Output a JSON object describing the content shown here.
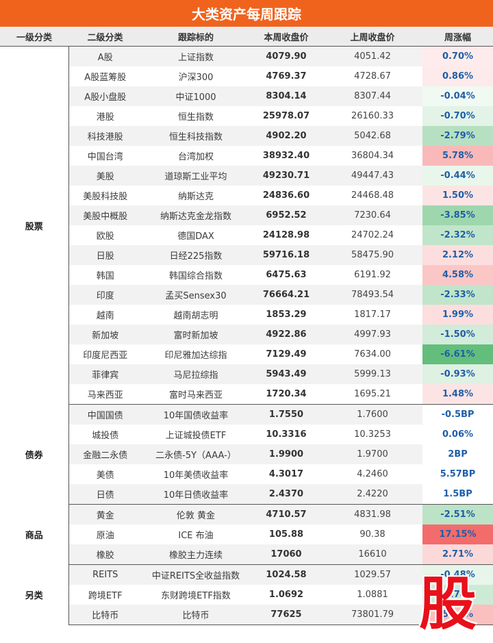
{
  "title": "大类资产每周跟踪",
  "headers": [
    "一级分类",
    "二级分类",
    "跟踪标的",
    "本周收盘价",
    "上周收盘价",
    "周涨幅"
  ],
  "groups": [
    {
      "name": "股票",
      "rows": [
        {
          "sub": "A股",
          "target": "上证指数",
          "cur": "4079.90",
          "prev": "4051.42",
          "chg": "0.70%",
          "chg_value": 0.7
        },
        {
          "sub": "A股蓝筹股",
          "target": "沪深300",
          "cur": "4769.37",
          "prev": "4728.67",
          "chg": "0.86%",
          "chg_value": 0.86
        },
        {
          "sub": "A股小盘股",
          "target": "中证1000",
          "cur": "8304.14",
          "prev": "8307.44",
          "chg": "-0.04%",
          "chg_value": -0.04
        },
        {
          "sub": "港股",
          "target": "恒生指数",
          "cur": "25978.07",
          "prev": "26160.33",
          "chg": "-0.70%",
          "chg_value": -0.7
        },
        {
          "sub": "科技港股",
          "target": "恒生科技指数",
          "cur": "4902.20",
          "prev": "5042.68",
          "chg": "-2.79%",
          "chg_value": -2.79
        },
        {
          "sub": "中国台湾",
          "target": "台湾加权",
          "cur": "38932.40",
          "prev": "36804.34",
          "chg": "5.78%",
          "chg_value": 5.78
        },
        {
          "sub": "美股",
          "target": "道琼斯工业平均",
          "cur": "49230.71",
          "prev": "49447.43",
          "chg": "-0.44%",
          "chg_value": -0.44
        },
        {
          "sub": "美股科技股",
          "target": "纳斯达克",
          "cur": "24836.60",
          "prev": "24468.48",
          "chg": "1.50%",
          "chg_value": 1.5
        },
        {
          "sub": "美股中概股",
          "target": "纳斯达克金龙指数",
          "cur": "6952.52",
          "prev": "7230.64",
          "chg": "-3.85%",
          "chg_value": -3.85
        },
        {
          "sub": "欧股",
          "target": "德国DAX",
          "cur": "24128.98",
          "prev": "24702.24",
          "chg": "-2.32%",
          "chg_value": -2.32
        },
        {
          "sub": "日股",
          "target": "日经225指数",
          "cur": "59716.18",
          "prev": "58475.90",
          "chg": "2.12%",
          "chg_value": 2.12
        },
        {
          "sub": "韩国",
          "target": "韩国综合指数",
          "cur": "6475.63",
          "prev": "6191.92",
          "chg": "4.58%",
          "chg_value": 4.58
        },
        {
          "sub": "印度",
          "target": "孟买Sensex30",
          "cur": "76664.21",
          "prev": "78493.54",
          "chg": "-2.33%",
          "chg_value": -2.33
        },
        {
          "sub": "越南",
          "target": "越南胡志明",
          "cur": "1853.29",
          "prev": "1817.17",
          "chg": "1.99%",
          "chg_value": 1.99
        },
        {
          "sub": "新加坡",
          "target": "富时新加坡",
          "cur": "4922.86",
          "prev": "4997.93",
          "chg": "-1.50%",
          "chg_value": -1.5
        },
        {
          "sub": "印度尼西亚",
          "target": "印尼雅加达综指",
          "cur": "7129.49",
          "prev": "7634.00",
          "chg": "-6.61%",
          "chg_value": -6.61
        },
        {
          "sub": "菲律宾",
          "target": "马尼拉综指",
          "cur": "5943.49",
          "prev": "5999.13",
          "chg": "-0.93%",
          "chg_value": -0.93
        },
        {
          "sub": "马来西亚",
          "target": "富时马来西亚",
          "cur": "1720.34",
          "prev": "1695.21",
          "chg": "1.48%",
          "chg_value": 1.48
        }
      ]
    },
    {
      "name": "债券",
      "rows": [
        {
          "sub": "中国国债",
          "target": "10年国债收益率",
          "cur": "1.7550",
          "prev": "1.7600",
          "chg": "-0.5BP",
          "chg_value": 0
        },
        {
          "sub": "城投债",
          "target": "上证城投债ETF",
          "cur": "10.3316",
          "prev": "10.3253",
          "chg": "0.06%",
          "chg_value": 0
        },
        {
          "sub": "金融二永债",
          "target": "二永债-5Y（AAA-）",
          "cur": "1.9900",
          "prev": "1.9700",
          "chg": "2BP",
          "chg_value": 0
        },
        {
          "sub": "美债",
          "target": "10年美债收益率",
          "cur": "4.3017",
          "prev": "4.2460",
          "chg": "5.57BP",
          "chg_value": 0
        },
        {
          "sub": "日债",
          "target": "10年日债收益率",
          "cur": "2.4370",
          "prev": "2.4220",
          "chg": "1.5BP",
          "chg_value": 0
        }
      ]
    },
    {
      "name": "商品",
      "rows": [
        {
          "sub": "黄金",
          "target": "伦敦 黄金",
          "cur": "4710.57",
          "prev": "4831.98",
          "chg": "-2.51%",
          "chg_value": -2.51
        },
        {
          "sub": "原油",
          "target": "ICE 布油",
          "cur": "105.88",
          "prev": "90.38",
          "chg": "17.15%",
          "chg_value": 17.15
        },
        {
          "sub": "橡胶",
          "target": "橡胶主力连续",
          "cur": "17060",
          "prev": "16610",
          "chg": "2.71%",
          "chg_value": 2.71
        }
      ]
    },
    {
      "name": "另类",
      "rows": [
        {
          "sub": "REITS",
          "target": "中证REITS全收益指数",
          "cur": "1024.58",
          "prev": "1029.57",
          "chg": "-0.48%",
          "chg_value": -0.48
        },
        {
          "sub": "跨境ETF",
          "target": "东财跨境ETF指数",
          "cur": "1.0692",
          "prev": "1.0881",
          "chg": "-1.74%",
          "chg_value": -1.74
        },
        {
          "sub": "比特币",
          "target": "比特币",
          "cur": "77625",
          "prev": "73801.79",
          "chg": "5.18%",
          "chg_value": 5.18
        }
      ]
    }
  ],
  "watermark": "股",
  "colors": {
    "title_bg": "#f0631d",
    "positive_strong": "#f46b6b",
    "negative_strong": "#63be7b",
    "change_text": "#1f5fa8"
  }
}
